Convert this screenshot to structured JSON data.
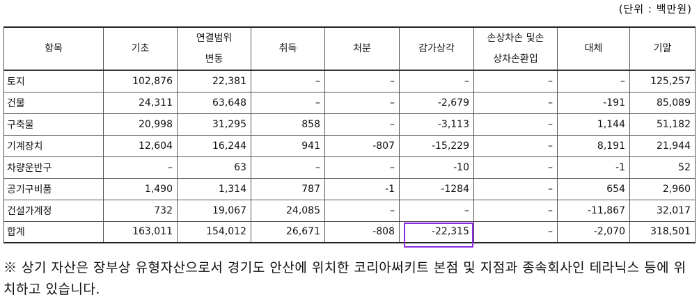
{
  "unit": "(단위 : 백만원)",
  "table": {
    "header": [
      "항목",
      "기초",
      "연결범위\n변동",
      "취득",
      "처분",
      "감가상각",
      "손상차손 및손\n상차손환입",
      "대체",
      "기말"
    ],
    "rows": [
      [
        "토지",
        "102,876",
        "22,381",
        "–",
        "–",
        "–",
        "–",
        "–",
        "125,257"
      ],
      [
        "건물",
        "24,311",
        "63,648",
        "–",
        "–",
        "-2,679",
        "–",
        "-191",
        "85,089"
      ],
      [
        "구축물",
        "20,998",
        "31,295",
        "858",
        "–",
        "-3,113",
        "–",
        "1,144",
        "51,182"
      ],
      [
        "기계장치",
        "12,604",
        "16,244",
        "941",
        "-807",
        "-15,229",
        "–",
        "8,191",
        "21,944"
      ],
      [
        "차량운반구",
        "–",
        "63",
        "–",
        "–",
        "-10",
        "–",
        "-1",
        "52"
      ],
      [
        "공기구비품",
        "1,490",
        "1,314",
        "787",
        "-1",
        "-1284",
        "–",
        "654",
        "2,960"
      ],
      [
        "건설가계정",
        "732",
        "19,067",
        "24,085",
        "–",
        "–",
        "–",
        "-11,867",
        "32,017"
      ],
      [
        "합계",
        "163,011",
        "154,012",
        "26,671",
        "-808",
        "-22,315",
        "–",
        "-2,070",
        "318,501"
      ]
    ]
  },
  "footnote": "※ 상기 자산은 장부상 유형자산으로서 경기도 안산에 위치한 코리아써키트 본점 및 지점과 종속회사인 테라닉스 등에 위치하고 있습니다."
}
